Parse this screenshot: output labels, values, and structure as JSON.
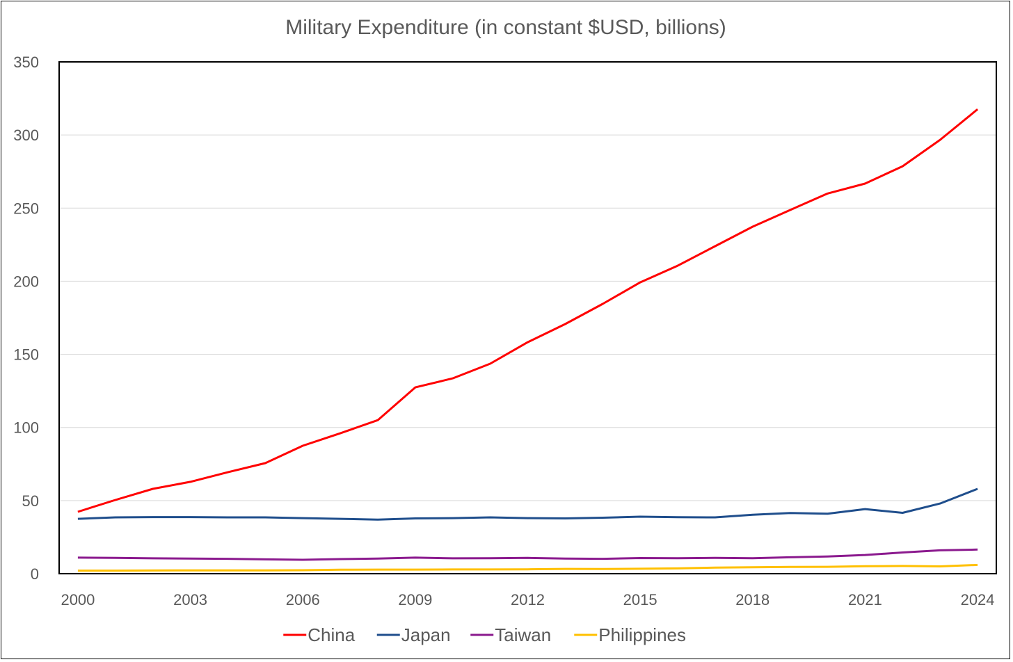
{
  "chart_data": {
    "type": "line",
    "title": "Military Expenditure (in constant $USD, billions)",
    "xlabel": "",
    "ylabel": "",
    "ylim": [
      0,
      350
    ],
    "yticks": [
      0,
      50,
      100,
      150,
      200,
      250,
      300,
      350
    ],
    "x": [
      2000,
      2001,
      2002,
      2003,
      2004,
      2005,
      2006,
      2007,
      2008,
      2009,
      2010,
      2011,
      2012,
      2013,
      2014,
      2015,
      2016,
      2017,
      2018,
      2019,
      2020,
      2021,
      2022,
      2023,
      2024
    ],
    "xtick_labels": [
      "2000",
      "2003",
      "2006",
      "2009",
      "2012",
      "2015",
      "2018",
      "2021",
      "2024"
    ],
    "grid": true,
    "legend": "bottom",
    "series": [
      {
        "name": "China",
        "color": "#FF0000",
        "values": [
          42.3,
          50.4,
          58,
          62.8,
          69.4,
          75.6,
          87.5,
          96,
          105,
          127.4,
          133.6,
          143.6,
          158.3,
          170.7,
          184.5,
          199.2,
          210.6,
          224,
          237.3,
          248.7,
          260,
          266.8,
          278.6,
          296.7,
          317.6
        ]
      },
      {
        "name": "Japan",
        "color": "#1F4E8C",
        "values": [
          37.5,
          38.5,
          38.7,
          38.7,
          38.5,
          38.5,
          38,
          37.5,
          37,
          37.8,
          38,
          38.5,
          38,
          37.8,
          38.3,
          39,
          38.6,
          38.5,
          40.3,
          41.5,
          41,
          44.2,
          41.6,
          48,
          58
        ]
      },
      {
        "name": "Taiwan",
        "color": "#8B1A8E",
        "values": [
          11,
          10.8,
          10.5,
          10.3,
          10.2,
          9.8,
          9.5,
          10,
          10.3,
          11,
          10.5,
          10.6,
          10.8,
          10.3,
          10.2,
          10.7,
          10.6,
          10.8,
          10.6,
          11.2,
          11.8,
          12.8,
          14.5,
          16,
          16.5
        ]
      },
      {
        "name": "Philippines",
        "color": "#FFC000",
        "values": [
          2.1,
          2.1,
          2.2,
          2.3,
          2.3,
          2.3,
          2.4,
          2.7,
          2.8,
          2.8,
          2.9,
          2.9,
          3.0,
          3.3,
          3.2,
          3.4,
          3.6,
          4.2,
          4.4,
          4.6,
          4.7,
          5.1,
          5.3,
          5.0,
          6.0
        ]
      }
    ]
  }
}
